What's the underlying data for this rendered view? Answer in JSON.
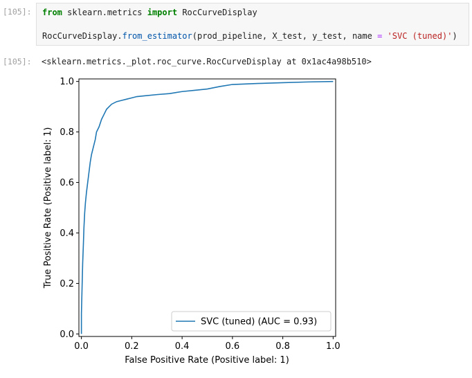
{
  "cell_in": {
    "prompt": "[105]:",
    "line1": {
      "from": "from",
      "module": " sklearn.metrics ",
      "import": "import",
      "name": " RocCurveDisplay"
    },
    "line2": {
      "obj": "RocCurveDisplay.",
      "method": "from_estimator",
      "args": "(prod_pipeline, X_test, y_test, name ",
      "eq": "=",
      "space": " ",
      "str": "'SVC (tuned)'",
      "close": ")"
    }
  },
  "cell_out": {
    "prompt": "[105]:",
    "text": "<sklearn.metrics._plot.roc_curve.RocCurveDisplay at 0x1ac4a98b510>"
  },
  "chart_data": {
    "type": "line",
    "xlabel": "False Positive Rate (Positive label: 1)",
    "ylabel": "True Positive Rate (Positive label: 1)",
    "xlim": [
      -0.01,
      1.01
    ],
    "ylim": [
      -0.01,
      1.01
    ],
    "xticks": [
      "0.0",
      "0.2",
      "0.4",
      "0.6",
      "0.8",
      "1.0"
    ],
    "yticks": [
      "0.0",
      "0.2",
      "0.4",
      "0.6",
      "0.8",
      "1.0"
    ],
    "legend_position": "lower-right",
    "grid": false,
    "series": [
      {
        "name": "SVC (tuned) (AUC = 0.93)",
        "color": "#1f77b4",
        "x": [
          0.0,
          0.0,
          0.003,
          0.005,
          0.008,
          0.01,
          0.013,
          0.016,
          0.02,
          0.025,
          0.03,
          0.035,
          0.04,
          0.045,
          0.05,
          0.055,
          0.06,
          0.07,
          0.08,
          0.09,
          0.1,
          0.11,
          0.12,
          0.14,
          0.16,
          0.18,
          0.2,
          0.22,
          0.25,
          0.3,
          0.35,
          0.4,
          0.45,
          0.5,
          0.55,
          0.6,
          0.65,
          0.7,
          0.8,
          0.9,
          1.0
        ],
        "y": [
          0.0,
          0.08,
          0.2,
          0.28,
          0.36,
          0.42,
          0.48,
          0.52,
          0.56,
          0.6,
          0.64,
          0.68,
          0.71,
          0.73,
          0.75,
          0.77,
          0.8,
          0.82,
          0.85,
          0.87,
          0.89,
          0.9,
          0.91,
          0.92,
          0.925,
          0.93,
          0.935,
          0.94,
          0.943,
          0.948,
          0.952,
          0.96,
          0.965,
          0.97,
          0.98,
          0.988,
          0.99,
          0.992,
          0.995,
          0.998,
          1.0
        ]
      }
    ]
  }
}
